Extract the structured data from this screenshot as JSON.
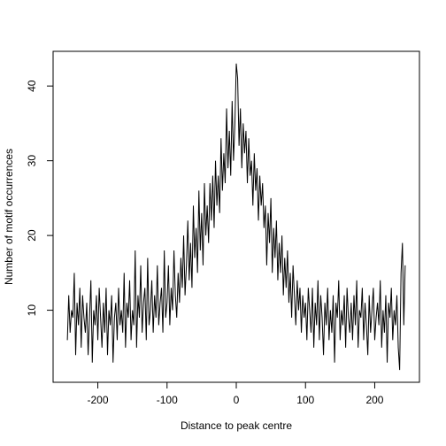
{
  "chart_data": {
    "type": "line",
    "x_label": "Distance to peak centre",
    "y_label": "Number of motif occurrences",
    "xlim": [
      -264.6,
      264.6
    ],
    "ylim": [
      0.36,
      44.64
    ],
    "xticks": [
      -200,
      -100,
      0,
      100,
      200
    ],
    "yticks": [
      10,
      20,
      30,
      40
    ],
    "x": [
      -244,
      -242,
      -240,
      -238,
      -236,
      -234,
      -232,
      -230,
      -228,
      -226,
      -224,
      -222,
      -220,
      -218,
      -216,
      -214,
      -212,
      -210,
      -208,
      -206,
      -204,
      -202,
      -200,
      -198,
      -196,
      -194,
      -192,
      -190,
      -188,
      -186,
      -184,
      -182,
      -180,
      -178,
      -176,
      -174,
      -172,
      -170,
      -168,
      -166,
      -164,
      -162,
      -160,
      -158,
      -156,
      -154,
      -152,
      -150,
      -148,
      -146,
      -144,
      -142,
      -140,
      -138,
      -136,
      -134,
      -132,
      -130,
      -128,
      -126,
      -124,
      -122,
      -120,
      -118,
      -116,
      -114,
      -112,
      -110,
      -108,
      -106,
      -104,
      -102,
      -100,
      -98,
      -96,
      -94,
      -92,
      -90,
      -88,
      -86,
      -84,
      -82,
      -80,
      -78,
      -76,
      -74,
      -72,
      -70,
      -68,
      -66,
      -64,
      -62,
      -60,
      -58,
      -56,
      -54,
      -52,
      -50,
      -48,
      -46,
      -44,
      -42,
      -40,
      -38,
      -36,
      -34,
      -32,
      -30,
      -28,
      -26,
      -24,
      -22,
      -20,
      -18,
      -16,
      -14,
      -12,
      -10,
      -8,
      -6,
      -4,
      -2,
      0,
      2,
      4,
      6,
      8,
      10,
      12,
      14,
      16,
      18,
      20,
      22,
      24,
      26,
      28,
      30,
      32,
      34,
      36,
      38,
      40,
      42,
      44,
      46,
      48,
      50,
      52,
      54,
      56,
      58,
      60,
      62,
      64,
      66,
      68,
      70,
      72,
      74,
      76,
      78,
      80,
      82,
      84,
      86,
      88,
      90,
      92,
      94,
      96,
      98,
      100,
      102,
      104,
      106,
      108,
      110,
      112,
      114,
      116,
      118,
      120,
      122,
      124,
      126,
      128,
      130,
      132,
      134,
      136,
      138,
      140,
      142,
      144,
      146,
      148,
      150,
      152,
      154,
      156,
      158,
      160,
      162,
      164,
      166,
      168,
      170,
      172,
      174,
      176,
      178,
      180,
      182,
      184,
      186,
      188,
      190,
      192,
      194,
      196,
      198,
      200,
      202,
      204,
      206,
      208,
      210,
      212,
      214,
      216,
      218,
      220,
      222,
      224,
      226,
      228,
      230,
      232,
      234,
      236,
      238,
      240,
      242,
      244
    ],
    "series": [
      {
        "color": "#000000",
        "values": [
          6,
          12,
          7,
          10,
          9,
          15,
          4,
          11,
          8,
          13,
          5,
          12,
          9,
          7,
          11,
          4,
          9,
          14,
          3,
          10,
          8,
          12,
          6,
          13,
          9,
          5,
          11,
          7,
          13,
          4,
          10,
          8,
          12,
          3,
          9,
          11,
          6,
          13,
          8,
          10,
          7,
          15,
          5,
          11,
          9,
          14,
          6,
          10,
          8,
          18,
          5,
          12,
          9,
          16,
          7,
          11,
          13,
          6,
          17,
          8,
          10,
          14,
          7,
          12,
          9,
          16,
          8,
          11,
          13,
          7,
          18,
          9,
          11,
          16,
          8,
          13,
          10,
          18,
          12,
          9,
          15,
          11,
          17,
          13,
          20,
          12,
          16,
          22,
          14,
          19,
          13,
          24,
          17,
          21,
          15,
          26,
          18,
          23,
          16,
          27,
          20,
          24,
          19,
          27,
          22,
          28,
          21,
          30,
          24,
          28,
          23,
          33,
          26,
          31,
          27,
          37,
          29,
          34,
          28,
          38,
          30,
          35,
          43,
          41,
          32,
          37,
          29,
          35,
          31,
          34,
          27,
          33,
          28,
          30,
          24,
          31,
          26,
          29,
          22,
          28,
          24,
          27,
          21,
          24,
          16,
          23,
          19,
          25,
          15,
          21,
          17,
          22,
          14,
          19,
          15,
          20,
          12,
          17,
          13,
          18,
          11,
          15,
          9,
          16,
          12,
          8,
          14,
          10,
          13,
          7,
          12,
          9,
          11,
          6,
          13,
          10,
          7,
          13,
          5,
          11,
          8,
          14,
          6,
          12,
          9,
          4,
          11,
          8,
          13,
          6,
          10,
          7,
          12,
          3,
          11,
          9,
          14,
          6,
          10,
          8,
          12,
          5,
          13,
          9,
          7,
          11,
          6,
          12,
          8,
          14,
          5,
          10,
          9,
          13,
          6,
          11,
          8,
          4,
          12,
          7,
          10,
          13,
          6,
          9,
          11,
          8,
          14,
          5,
          10,
          7,
          12,
          3,
          11,
          9,
          13,
          6,
          10,
          8,
          12,
          5,
          2,
          15,
          19,
          8,
          16
        ]
      }
    ]
  }
}
